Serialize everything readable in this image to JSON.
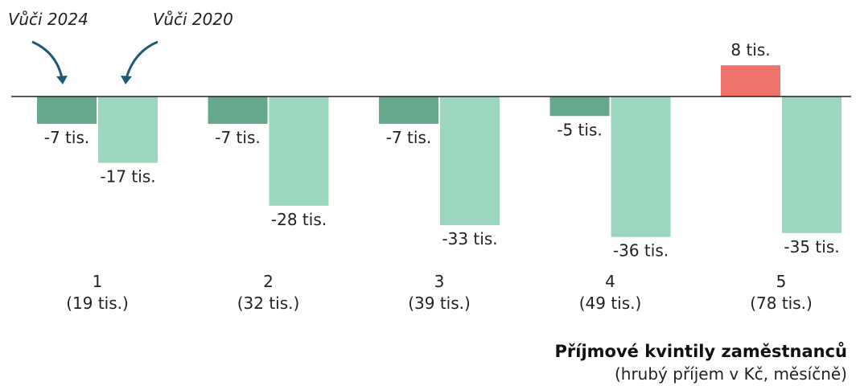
{
  "chart_data": {
    "type": "bar",
    "categories": [
      "1",
      "2",
      "3",
      "4",
      "5"
    ],
    "category_sublabels": [
      "(19 tis.)",
      "(32 tis.)",
      "(39 tis.)",
      "(49 tis.)",
      "(78 tis.)"
    ],
    "series": [
      {
        "values": [
          -7,
          -7,
          -7,
          -5,
          8
        ],
        "labels": [
          "-7 tis.",
          "-7 tis.",
          "-7 tis.",
          "-5 tis.",
          "8 tis."
        ],
        "color": "#66a88b",
        "positive_color": "#ee736b"
      },
      {
        "values": [
          -17,
          -28,
          -33,
          -36,
          -35
        ],
        "labels": [
          "-17 tis.",
          "-28 tis.",
          "-33 tis.",
          "-36 tis.",
          "-35 tis."
        ],
        "color": "#9dd6be"
      }
    ],
    "annotations": [
      "Vůči 2024",
      "Vůči 2020"
    ],
    "xlabel": "Příjmové kvintily zaměstnanců",
    "xlabel_sub": "(hrubý příjem v Kč, měsíčně)",
    "ylim": [
      -36,
      8
    ],
    "grid": false,
    "baseline_color": "#222222"
  }
}
